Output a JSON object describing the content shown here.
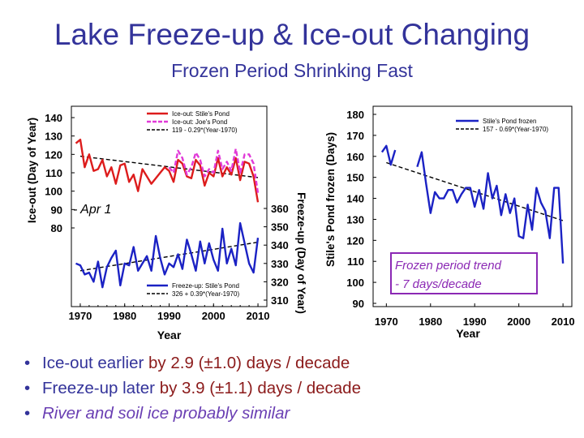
{
  "title": "Lake Freeze-up & Ice-out Changing",
  "subtitle": "Frozen Period Shrinking Fast",
  "bullets": [
    {
      "prefix": "Ice-out earlier ",
      "emph": "by 2.9 (±1.0) days / decade"
    },
    {
      "prefix": "Freeze-up later ",
      "emph": "by 3.9 (±1.1) days / decade"
    },
    {
      "italic": "River and soil ice probably similar"
    }
  ],
  "colors": {
    "title": "#33339a",
    "ice_out_stiles": "#dd1c1c",
    "ice_out_joes": "#e13ad8",
    "freeze_up": "#1b22c4",
    "frozen": "#1b22c4",
    "trend": "#000000",
    "annotation_box": "#8b28b4",
    "annotation_text": "#8b28b4",
    "emph": "#8b1a1a"
  },
  "chart_data": [
    {
      "type": "line",
      "panel": "ice-out",
      "xlabel": "Year",
      "ylabel": "Ice-out (Day of Year)",
      "xlim": [
        1968,
        2012
      ],
      "ylim": [
        80,
        140
      ],
      "yticks": [
        140,
        130,
        120,
        110,
        100,
        90,
        80
      ],
      "xticks": [
        1970,
        1980,
        1990,
        2000,
        2010
      ],
      "annotation": "- Apr 1",
      "series": [
        {
          "name": "Ice-out: Stile's Pond",
          "x": [
            1969,
            1970,
            1971,
            1972,
            1973,
            1974,
            1975,
            1976,
            1977,
            1978,
            1979,
            1980,
            1981,
            1982,
            1983,
            1984,
            1985,
            1986,
            1987,
            1988,
            1989,
            1990,
            1991,
            1992,
            1993,
            1994,
            1995,
            1996,
            1997,
            1998,
            1999,
            2000,
            2001,
            2002,
            2003,
            2004,
            2005,
            2006,
            2007,
            2008,
            2009,
            2010
          ],
          "values": [
            126,
            128,
            113,
            120,
            111,
            112,
            117,
            108,
            113,
            104,
            114,
            115,
            105,
            109,
            100,
            112,
            108,
            104,
            107,
            110,
            113,
            111,
            105,
            117,
            115,
            108,
            107,
            117,
            114,
            103,
            110,
            108,
            118,
            108,
            113,
            109,
            118,
            106,
            116,
            115,
            108,
            94
          ]
        },
        {
          "name": "Ice-out: Joe's Pond",
          "x": [
            1990,
            1991,
            1992,
            1993,
            1994,
            1995,
            1996,
            1997,
            1998,
            1999,
            2000,
            2001,
            2002,
            2003,
            2004,
            2005,
            2006,
            2007,
            2008,
            2009,
            2010
          ],
          "values": [
            113,
            110,
            122,
            118,
            109,
            113,
            121,
            117,
            108,
            112,
            110,
            122,
            112,
            116,
            111,
            123,
            110,
            120,
            120,
            115,
            99
          ]
        },
        {
          "name": "119 - 0.29*(Year-1970)",
          "dashed": true,
          "x": [
            1970,
            2010
          ],
          "values": [
            119,
            107.4
          ]
        }
      ]
    },
    {
      "type": "line",
      "panel": "freeze-up",
      "xlabel": "Year",
      "ylabel": "Freeze-up (Day of Year)",
      "xlim": [
        1968,
        2012
      ],
      "ylim": [
        310,
        360
      ],
      "yticks": [
        360,
        350,
        340,
        330,
        320,
        310
      ],
      "xticks": [
        1970,
        1980,
        1990,
        2000,
        2010
      ],
      "series": [
        {
          "name": "Freeze-up: Stile's Pond",
          "x": [
            1969,
            1970,
            1971,
            1972,
            1973,
            1974,
            1975,
            1976,
            1977,
            1978,
            1979,
            1980,
            1981,
            1982,
            1983,
            1984,
            1985,
            1986,
            1987,
            1988,
            1989,
            1990,
            1991,
            1992,
            1993,
            1994,
            1995,
            1996,
            1997,
            1998,
            1999,
            2000,
            2001,
            2002,
            2003,
            2004,
            2005,
            2006,
            2007,
            2008,
            2009,
            2010
          ],
          "values": [
            330,
            329,
            324,
            325,
            320,
            331,
            317,
            328,
            333,
            337,
            318,
            330,
            329,
            339,
            326,
            330,
            334,
            326,
            345,
            333,
            324,
            330,
            328,
            335,
            327,
            343,
            335,
            326,
            342,
            330,
            341,
            332,
            326,
            349,
            330,
            338,
            329,
            352,
            341,
            330,
            325,
            344
          ]
        },
        {
          "name": "326 + 0.39*(Year-1970)",
          "dashed": true,
          "x": [
            1970,
            2010
          ],
          "values": [
            326,
            341.6
          ]
        }
      ]
    },
    {
      "type": "line",
      "panel": "frozen-period",
      "xlabel": "Year",
      "ylabel": "Stile's Pond frozen (Days)",
      "xlim": [
        1967,
        2012
      ],
      "ylim": [
        90,
        180
      ],
      "yticks": [
        180,
        170,
        160,
        150,
        140,
        130,
        120,
        110,
        100,
        90
      ],
      "xticks": [
        1970,
        1980,
        1990,
        2000,
        2010
      ],
      "annotation": [
        "Frozen period trend",
        "- 7 days/decade"
      ],
      "series": [
        {
          "name": "Stile's Pond frozen",
          "x": [
            1969,
            1970,
            1971,
            1972,
            1973,
            1974,
            1975,
            1976,
            1977,
            1978,
            1979,
            1980,
            1981,
            1982,
            1983,
            1984,
            1985,
            1986,
            1987,
            1988,
            1989,
            1990,
            1991,
            1992,
            1993,
            1994,
            1995,
            1996,
            1997,
            1998,
            1999,
            2000,
            2001,
            2002,
            2003,
            2004,
            2005,
            2006,
            2007,
            2008,
            2009,
            2010
          ],
          "values": [
            162,
            165,
            156,
            163,
            null,
            null,
            null,
            null,
            155,
            162,
            147,
            133,
            143,
            140,
            140,
            144,
            144,
            138,
            142,
            145,
            145,
            136,
            144,
            135,
            152,
            140,
            146,
            132,
            142,
            133,
            140,
            122,
            121,
            137,
            125,
            145,
            138,
            134,
            121,
            145,
            145,
            109
          ]
        },
        {
          "name": "157 - 0.69*(Year-1970)",
          "dashed": true,
          "x": [
            1970,
            2010
          ],
          "values": [
            157,
            129.4
          ]
        }
      ]
    }
  ]
}
